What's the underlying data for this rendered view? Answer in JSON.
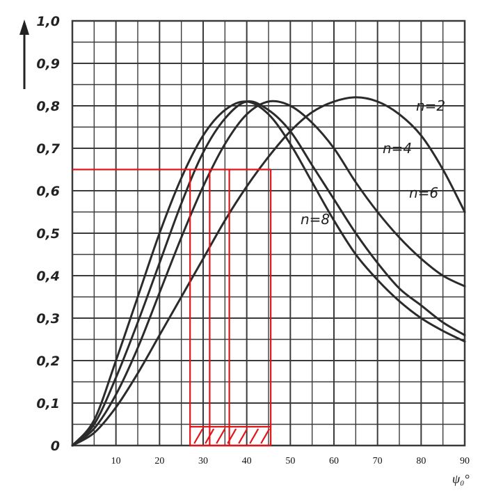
{
  "chart_data": {
    "type": "line",
    "xlabel": "ψ₀°",
    "ylabel": "",
    "xlim": [
      0,
      90
    ],
    "ylim": [
      0,
      1.0
    ],
    "x_ticks": [
      "10",
      "20",
      "30",
      "40",
      "50",
      "60",
      "70",
      "80",
      "90"
    ],
    "y_ticks": [
      "0",
      "0,1",
      "0,2",
      "0,3",
      "0,4",
      "0,5",
      "0,6",
      "0,7",
      "0,8",
      "0,9",
      "1,0"
    ],
    "grid": true,
    "series": [
      {
        "name": "n=2",
        "x": [
          0,
          5,
          10,
          15,
          20,
          25,
          30,
          35,
          40,
          45,
          50,
          55,
          60,
          65,
          70,
          75,
          80,
          85,
          90
        ],
        "y": [
          0,
          0.03,
          0.09,
          0.17,
          0.26,
          0.35,
          0.44,
          0.53,
          0.61,
          0.68,
          0.74,
          0.785,
          0.81,
          0.82,
          0.81,
          0.78,
          0.73,
          0.65,
          0.55
        ]
      },
      {
        "name": "n=4",
        "x": [
          0,
          5,
          10,
          15,
          20,
          25,
          30,
          35,
          40,
          45,
          50,
          55,
          60,
          65,
          70,
          75,
          80,
          85,
          90
        ],
        "y": [
          0,
          0.04,
          0.12,
          0.23,
          0.36,
          0.49,
          0.61,
          0.71,
          0.78,
          0.81,
          0.8,
          0.76,
          0.7,
          0.62,
          0.55,
          0.49,
          0.44,
          0.4,
          0.375
        ]
      },
      {
        "name": "n=6",
        "x": [
          0,
          5,
          10,
          15,
          20,
          25,
          30,
          35,
          40,
          45,
          50,
          55,
          60,
          65,
          70,
          75,
          80,
          85,
          90
        ],
        "y": [
          0,
          0.05,
          0.16,
          0.29,
          0.43,
          0.57,
          0.69,
          0.77,
          0.81,
          0.79,
          0.74,
          0.66,
          0.58,
          0.5,
          0.43,
          0.37,
          0.33,
          0.29,
          0.26
        ]
      },
      {
        "name": "n=8",
        "x": [
          0,
          5,
          10,
          15,
          20,
          25,
          30,
          35,
          40,
          45,
          50,
          55,
          60,
          65,
          70,
          75,
          80,
          85,
          90
        ],
        "y": [
          0,
          0.06,
          0.2,
          0.35,
          0.5,
          0.63,
          0.73,
          0.79,
          0.81,
          0.78,
          0.71,
          0.62,
          0.53,
          0.45,
          0.39,
          0.34,
          0.3,
          0.27,
          0.245
        ]
      }
    ],
    "annotations": {
      "level_y": 0.65,
      "intersections_x": [
        27,
        31.5,
        36,
        45.5
      ],
      "hatched_band_x": [
        27,
        45.5
      ]
    }
  },
  "colors": {
    "curve": "#2b2b2b",
    "grid": "#3a3a3a",
    "annotation": "#e0141a"
  },
  "icons": {
    "up-arrow": "arrow-up-icon"
  }
}
